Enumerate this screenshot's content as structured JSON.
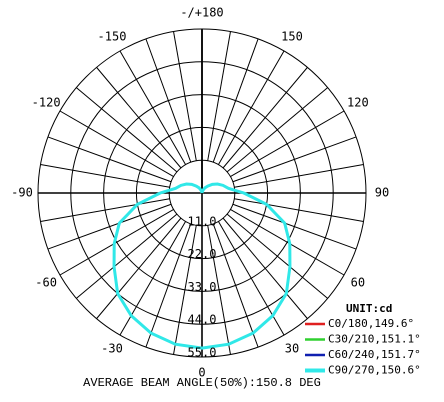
{
  "chart_data": {
    "type": "polar",
    "title": "AVERAGE BEAM ANGLE(50%):150.8 DEG",
    "unit_label": "UNIT:cd",
    "x": [
      -180,
      -170,
      -160,
      -150,
      -140,
      -130,
      -120,
      -110,
      -100,
      -90,
      -80,
      -70,
      -60,
      -50,
      -40,
      -30,
      -20,
      -10,
      0,
      10,
      20,
      30,
      40,
      50,
      60,
      70,
      80,
      90,
      100,
      110,
      120,
      130,
      140,
      150,
      160,
      170,
      180
    ],
    "series": [
      {
        "name": "C0/180,149.6°",
        "color": "#e02020",
        "values": [
          0,
          0.5,
          1,
          2,
          3,
          4.5,
          6,
          7.5,
          9,
          14,
          22,
          29.5,
          34,
          38.5,
          44,
          47.5,
          50,
          51.5,
          52,
          51.5,
          50,
          47.5,
          44,
          38.5,
          34,
          29.5,
          22,
          14,
          9,
          7.5,
          6,
          4.5,
          3,
          2,
          1,
          0.5,
          0
        ]
      },
      {
        "name": "C30/210,151.1°",
        "color": "#30d030",
        "values": [
          0,
          0.5,
          1,
          2,
          3,
          4.5,
          6,
          7.5,
          9,
          14,
          22,
          29.5,
          34,
          38.5,
          44,
          47.5,
          50,
          51.5,
          52,
          51.5,
          50,
          47.5,
          44,
          38.5,
          34,
          29.5,
          22,
          14,
          9,
          7.5,
          6,
          4.5,
          3,
          2,
          1,
          0.5,
          0
        ]
      },
      {
        "name": "C60/240,151.7°",
        "color": "#1020b0",
        "values": [
          0,
          0.5,
          1,
          2,
          3,
          4.5,
          6,
          7.5,
          9,
          14,
          22,
          29.5,
          34,
          38.5,
          44,
          47.5,
          50,
          51.5,
          52,
          51.5,
          50,
          47.5,
          44,
          38.5,
          34,
          29.5,
          22,
          14,
          9,
          7.5,
          6,
          4.5,
          3,
          2,
          1,
          0.5,
          0
        ]
      },
      {
        "name": "C90/270,150.6°",
        "color": "#30e8e8",
        "values": [
          0,
          0.5,
          1,
          2,
          3,
          4.5,
          6,
          7.5,
          9,
          14,
          22,
          29.5,
          34,
          38.5,
          44,
          47.5,
          50,
          51.5,
          52,
          51.5,
          50,
          47.5,
          44,
          38.5,
          34,
          29.5,
          22,
          14,
          9,
          7.5,
          6,
          4.5,
          3,
          2,
          1,
          0.5,
          0
        ]
      }
    ],
    "rlim": [
      0,
      55
    ],
    "rticks": [
      {
        "value": 11,
        "label": "11.0"
      },
      {
        "value": 22,
        "label": "22.0"
      },
      {
        "value": 33,
        "label": "33.0"
      },
      {
        "value": 44,
        "label": "44.0"
      },
      {
        "value": 55,
        "label": "55.0"
      }
    ],
    "angle_ticks": [
      {
        "value": 180,
        "label": "-/+180"
      },
      -150,
      150,
      -120,
      120,
      -90,
      90,
      -60,
      60,
      -30,
      30,
      0
    ]
  }
}
